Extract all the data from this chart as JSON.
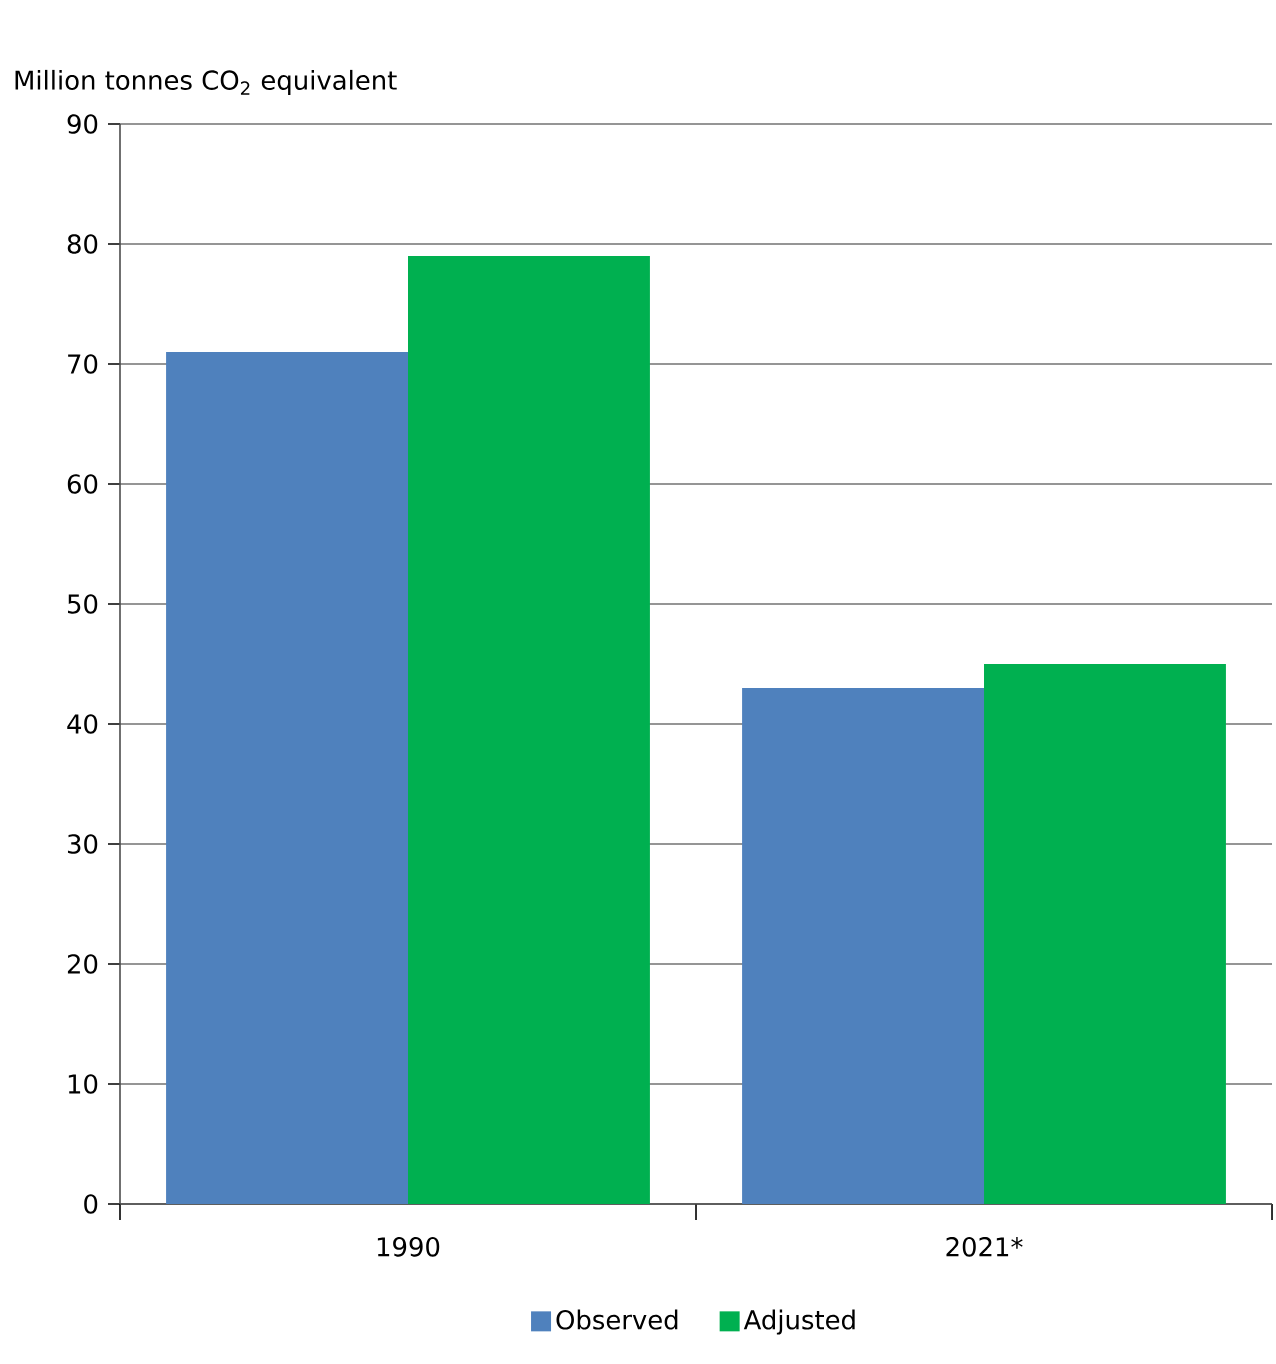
{
  "chart_data": {
    "type": "bar",
    "ylabel": "Million tonnes CO$_{2}$ equivalent",
    "categories": [
      "1990",
      "2021*"
    ],
    "series": [
      {
        "name": "Observed",
        "color": "#4f81bd",
        "values": [
          71,
          43
        ]
      },
      {
        "name": "Adjusted",
        "color": "#00b050",
        "values": [
          79,
          45
        ]
      }
    ],
    "ylim": [
      0,
      90
    ],
    "yticks": [
      0,
      10,
      20,
      30,
      40,
      50,
      60,
      70,
      80,
      90
    ],
    "grid": "y",
    "legend": "bottom"
  }
}
